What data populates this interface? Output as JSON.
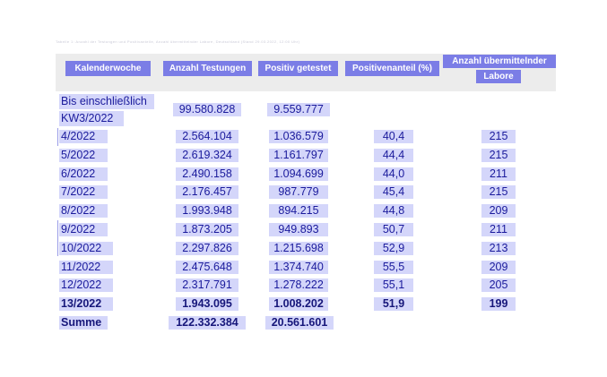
{
  "caption": "Tabelle 1: Anzahl der Testungen und Positivanteile, Anzahl übermittelnder Labore, Deutschland (Stand 29.03.2022, 12:00 Uhr)",
  "headers": {
    "week": "Kalenderwoche",
    "tests": "Anzahl Testungen",
    "positive": "Positiv getestet",
    "share": "Positivenanteil (%)",
    "labs_line1": "Anzahl übermittelnder",
    "labs_line2": "Labore"
  },
  "first_row": {
    "week_line1": "Bis einschließlich",
    "week_line2": "KW3/2022",
    "tests": "99.580.828",
    "positive": "9.559.777"
  },
  "rows": [
    {
      "week": "4/2022",
      "tests": "2.564.104",
      "positive": "1.036.579",
      "share": "40,4",
      "labs": "215"
    },
    {
      "week": "5/2022",
      "tests": "2.619.324",
      "positive": "1.161.797",
      "share": "44,4",
      "labs": "215"
    },
    {
      "week": "6/2022",
      "tests": "2.490.158",
      "positive": "1.094.699",
      "share": "44,0",
      "labs": "211"
    },
    {
      "week": "7/2022",
      "tests": "2.176.457",
      "positive": "987.779",
      "share": "45,4",
      "labs": "215"
    },
    {
      "week": "8/2022",
      "tests": "1.993.948",
      "positive": "894.215",
      "share": "44,8",
      "labs": "209"
    },
    {
      "week": "9/2022",
      "tests": "1.873.205",
      "positive": "949.893",
      "share": "50,7",
      "labs": "211"
    },
    {
      "week": "10/2022",
      "tests": "2.297.826",
      "positive": "1.215.698",
      "share": "52,9",
      "labs": "213"
    },
    {
      "week": "11/2022",
      "tests": "2.475.648",
      "positive": "1.374.740",
      "share": "55,5",
      "labs": "209"
    },
    {
      "week": "12/2022",
      "tests": "2.317.791",
      "positive": "1.278.222",
      "share": "55,1",
      "labs": "205"
    },
    {
      "week": "13/2022",
      "tests": "1.943.095",
      "positive": "1.008.202",
      "share": "51,9",
      "labs": "199"
    }
  ],
  "sum": {
    "label": "Summe",
    "tests": "122.332.384",
    "positive": "20.561.601"
  },
  "colors": {
    "header_fill": "#7b7de6",
    "cell_highlight": "#d4d6fa",
    "text": "#1a1a9c",
    "header_band": "#ececec"
  }
}
